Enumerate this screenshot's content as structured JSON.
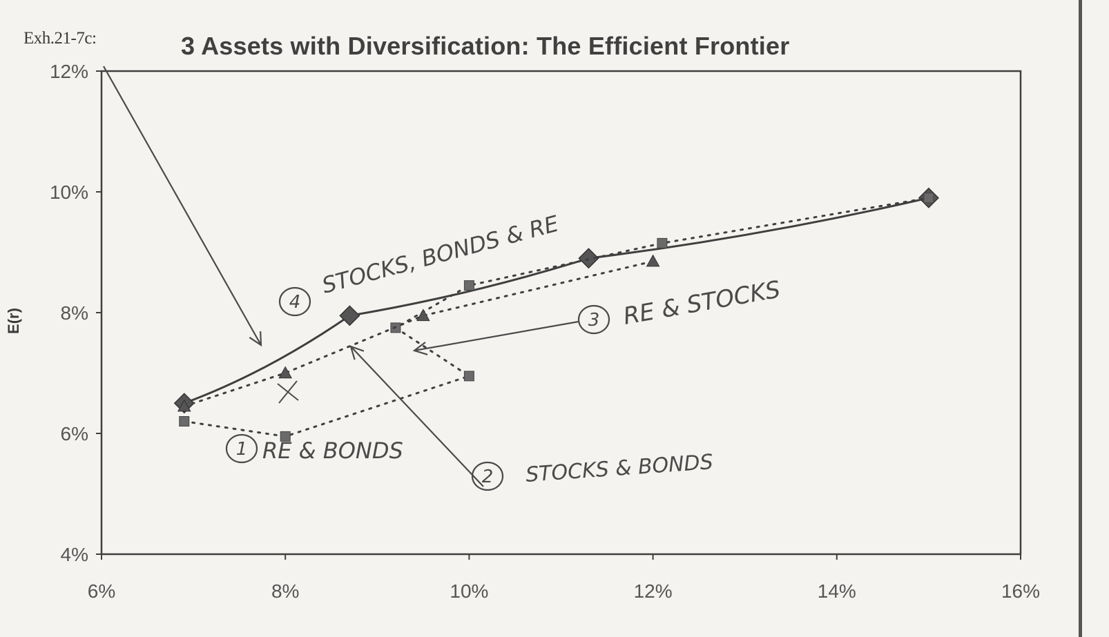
{
  "exhibit_label": "Exh.21-7c:",
  "title": "3 Assets with Diversification: The Efficient Frontier",
  "ylabel": "E(r)",
  "colors": {
    "ink": "#3f3f3f",
    "pencil": "#4a4a4a",
    "background": "#f4f3f0"
  },
  "chart_data": {
    "type": "scatter",
    "title": "3 Assets with Diversification: The Efficient Frontier",
    "xlabel": "",
    "ylabel": "E(r)",
    "xlim": [
      6,
      16
    ],
    "ylim": [
      4,
      12
    ],
    "x_ticks": [
      "6%",
      "8%",
      "10%",
      "12%",
      "14%",
      "16%"
    ],
    "y_ticks": [
      "4%",
      "6%",
      "8%",
      "10%",
      "12%"
    ],
    "grid": false,
    "series": [
      {
        "style": "solid",
        "marker": "diamond",
        "points": [
          [
            6.9,
            6.5
          ],
          [
            8.7,
            7.95
          ],
          [
            11.3,
            8.9
          ],
          [
            15.0,
            9.9
          ]
        ]
      },
      {
        "style": "dotted",
        "marker": "square",
        "points": [
          [
            6.9,
            6.2
          ],
          [
            8.0,
            5.95
          ],
          [
            10.0,
            6.95
          ],
          [
            9.2,
            7.75
          ],
          [
            10.0,
            8.45
          ],
          [
            12.1,
            9.15
          ],
          [
            15.0,
            9.9
          ]
        ]
      },
      {
        "style": "dotted",
        "marker": "triangle",
        "points": [
          [
            6.9,
            6.45
          ],
          [
            8.0,
            7.0
          ],
          [
            9.5,
            7.95
          ],
          [
            12.0,
            8.85
          ]
        ]
      }
    ],
    "annotations": [
      {
        "number": "4",
        "text": "STOCKS, BONDS & RE"
      },
      {
        "number": "3",
        "text": "RE & STOCKS"
      },
      {
        "number": "1",
        "text": "RE & BONDS"
      },
      {
        "number": "2",
        "text": "STOCKS & BONDS"
      }
    ]
  }
}
